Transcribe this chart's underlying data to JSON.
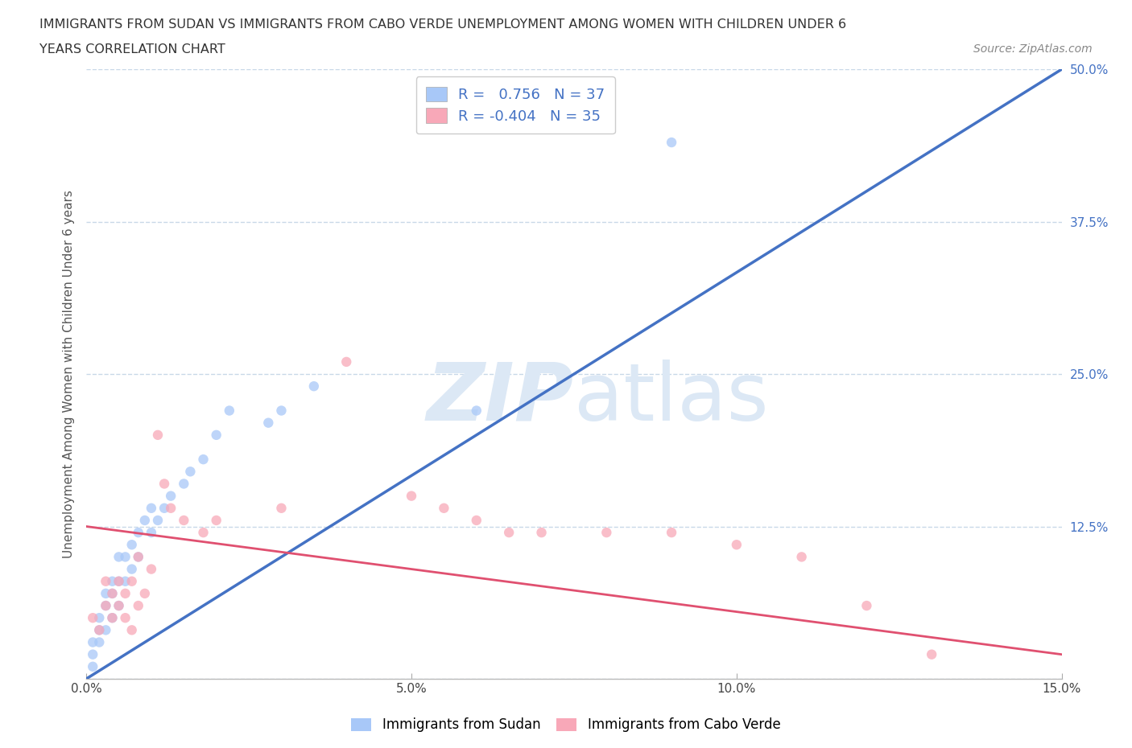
{
  "title_line1": "IMMIGRANTS FROM SUDAN VS IMMIGRANTS FROM CABO VERDE UNEMPLOYMENT AMONG WOMEN WITH CHILDREN UNDER 6",
  "title_line2": "YEARS CORRELATION CHART",
  "source": "Source: ZipAtlas.com",
  "ylabel": "Unemployment Among Women with Children Under 6 years",
  "xmin": 0.0,
  "xmax": 0.15,
  "ymin": 0.0,
  "ymax": 0.5,
  "yticks": [
    0.0,
    0.125,
    0.25,
    0.375,
    0.5
  ],
  "ytick_labels": [
    "",
    "12.5%",
    "25.0%",
    "37.5%",
    "50.0%"
  ],
  "xticks": [
    0.0,
    0.05,
    0.1,
    0.15
  ],
  "xtick_labels": [
    "0.0%",
    "5.0%",
    "10.0%",
    "15.0%"
  ],
  "legend_label1": "Immigrants from Sudan",
  "legend_label2": "Immigrants from Cabo Verde",
  "r1": 0.756,
  "n1": 37,
  "r2": -0.404,
  "n2": 35,
  "color1": "#a8c8f8",
  "color2": "#f8a8b8",
  "line_color1": "#4472c4",
  "line_color2": "#e05070",
  "watermark_color": "#dce8f5",
  "background_color": "#ffffff",
  "grid_color": "#c8d8e8",
  "sudan_x": [
    0.001,
    0.001,
    0.001,
    0.002,
    0.002,
    0.002,
    0.003,
    0.003,
    0.003,
    0.004,
    0.004,
    0.004,
    0.005,
    0.005,
    0.005,
    0.006,
    0.006,
    0.007,
    0.007,
    0.008,
    0.008,
    0.009,
    0.01,
    0.01,
    0.011,
    0.012,
    0.013,
    0.015,
    0.016,
    0.018,
    0.02,
    0.022,
    0.028,
    0.03,
    0.035,
    0.06,
    0.09
  ],
  "sudan_y": [
    0.01,
    0.02,
    0.03,
    0.03,
    0.04,
    0.05,
    0.04,
    0.06,
    0.07,
    0.05,
    0.07,
    0.08,
    0.06,
    0.08,
    0.1,
    0.08,
    0.1,
    0.09,
    0.11,
    0.1,
    0.12,
    0.13,
    0.12,
    0.14,
    0.13,
    0.14,
    0.15,
    0.16,
    0.17,
    0.18,
    0.2,
    0.22,
    0.21,
    0.22,
    0.24,
    0.22,
    0.44
  ],
  "caboverde_x": [
    0.001,
    0.002,
    0.003,
    0.003,
    0.004,
    0.004,
    0.005,
    0.005,
    0.006,
    0.006,
    0.007,
    0.007,
    0.008,
    0.008,
    0.009,
    0.01,
    0.011,
    0.012,
    0.013,
    0.015,
    0.018,
    0.02,
    0.03,
    0.04,
    0.05,
    0.055,
    0.06,
    0.065,
    0.07,
    0.08,
    0.09,
    0.1,
    0.11,
    0.12,
    0.13
  ],
  "caboverde_y": [
    0.05,
    0.04,
    0.06,
    0.08,
    0.05,
    0.07,
    0.06,
    0.08,
    0.05,
    0.07,
    0.04,
    0.08,
    0.06,
    0.1,
    0.07,
    0.09,
    0.2,
    0.16,
    0.14,
    0.13,
    0.12,
    0.13,
    0.14,
    0.26,
    0.15,
    0.14,
    0.13,
    0.12,
    0.12,
    0.12,
    0.12,
    0.11,
    0.1,
    0.06,
    0.02
  ],
  "blue_line_x0": 0.0,
  "blue_line_y0": 0.0,
  "blue_line_x1": 0.15,
  "blue_line_y1": 0.5,
  "pink_line_x0": 0.0,
  "pink_line_y0": 0.125,
  "pink_line_x1": 0.15,
  "pink_line_y1": 0.02
}
